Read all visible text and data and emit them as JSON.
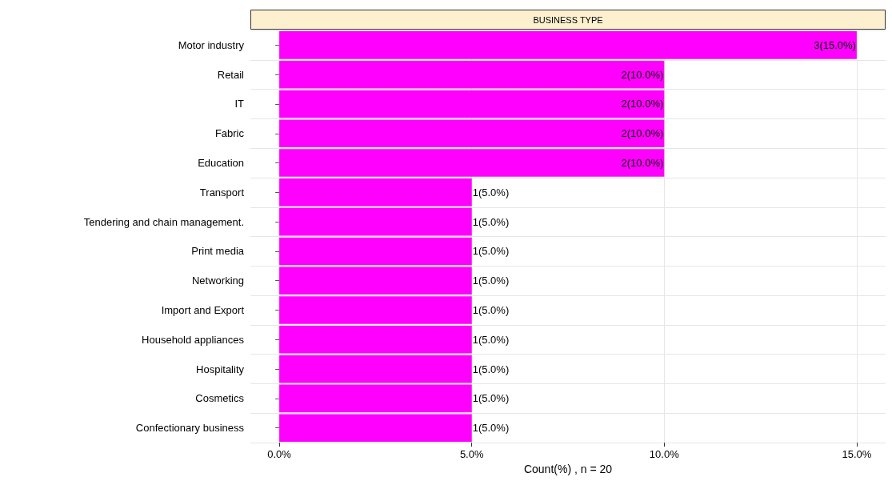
{
  "chart_data": {
    "type": "bar",
    "orientation": "horizontal",
    "title": "BUSINESS TYPE",
    "xlabel": "Count(%) , n = 20",
    "categories": [
      "Motor industry",
      "Retail",
      "IT",
      "Fabric",
      "Education",
      "Transport",
      "Tendering and chain management.",
      "Print media",
      "Networking",
      "Import and Export",
      "Household appliances",
      "Hospitality",
      "Cosmetics",
      "Confectionary business"
    ],
    "values": [
      15,
      10,
      10,
      10,
      10,
      5,
      5,
      5,
      5,
      5,
      5,
      5,
      5,
      5
    ],
    "value_labels": [
      "3(15.0%)",
      "2(10.0%)",
      "2(10.0%)",
      "2(10.0%)",
      "2(10.0%)",
      "1(5.0%)",
      "1(5.0%)",
      "1(5.0%)",
      "1(5.0%)",
      "1(5.0%)",
      "1(5.0%)",
      "1(5.0%)",
      "1(5.0%)",
      "1(5.0%)"
    ],
    "color": "#ff00ff",
    "xlim": [
      -0.75,
      15.75
    ],
    "xticks": [
      {
        "value": 0,
        "label": "0.0%"
      },
      {
        "value": 5,
        "label": "5.0%"
      },
      {
        "value": 10,
        "label": "10.0%"
      },
      {
        "value": 15,
        "label": "15.0%"
      }
    ],
    "grid": true
  }
}
